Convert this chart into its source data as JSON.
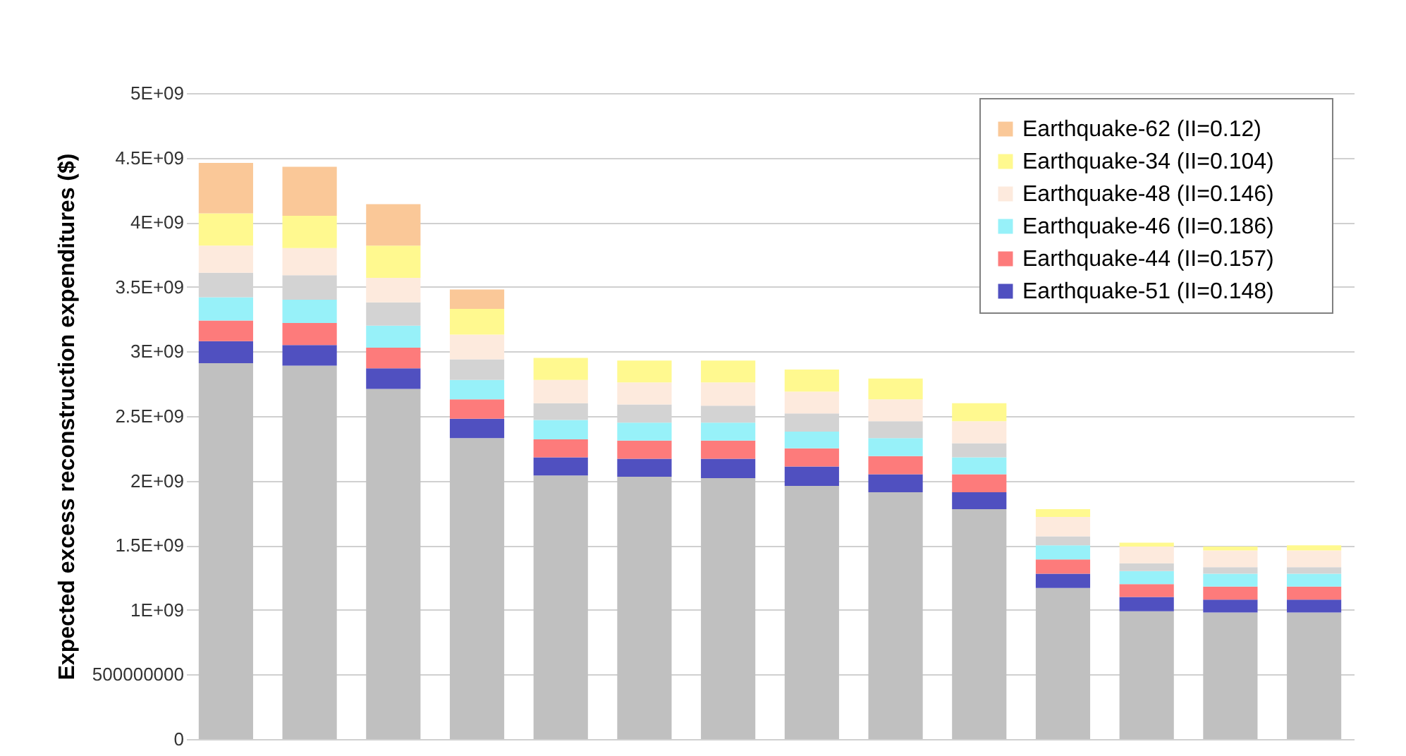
{
  "chart_data": {
    "type": "bar",
    "stacked": true,
    "ylabel": "Expected excess reconstruction expenditures ($)",
    "categories": [
      null,
      null,
      null,
      null,
      null,
      null,
      null,
      null,
      null,
      null,
      null,
      null,
      null,
      null
    ],
    "series": [
      {
        "color": "#c0c0c0",
        "values": [
          2910000000,
          2890000000,
          2710000000,
          2330000000,
          2040000000,
          2030000000,
          2020000000,
          1960000000,
          1910000000,
          1780000000,
          1170000000,
          990000000,
          980000000,
          980000000
        ]
      },
      {
        "name": "Earthquake-51 (II=0.148)",
        "color": "#5050c0",
        "values": [
          170000000,
          160000000,
          160000000,
          150000000,
          140000000,
          140000000,
          150000000,
          150000000,
          140000000,
          130000000,
          110000000,
          110000000,
          100000000,
          100000000
        ]
      },
      {
        "name": "Earthquake-44 (II=0.157)",
        "color": "#fd7b7b",
        "values": [
          160000000,
          170000000,
          160000000,
          150000000,
          140000000,
          140000000,
          140000000,
          140000000,
          140000000,
          140000000,
          110000000,
          100000000,
          100000000,
          100000000
        ]
      },
      {
        "name": "Earthquake-46 (II=0.186)",
        "color": "#97f1f9",
        "values": [
          180000000,
          180000000,
          170000000,
          150000000,
          150000000,
          140000000,
          140000000,
          130000000,
          140000000,
          130000000,
          110000000,
          100000000,
          100000000,
          100000000
        ]
      },
      {
        "color": "#d3d3d3",
        "values": [
          190000000,
          190000000,
          180000000,
          160000000,
          130000000,
          140000000,
          130000000,
          140000000,
          130000000,
          110000000,
          70000000,
          60000000,
          50000000,
          50000000
        ]
      },
      {
        "name": "Earthquake-48 (II=0.146)",
        "color": "#fdeadd",
        "values": [
          210000000,
          210000000,
          190000000,
          190000000,
          180000000,
          170000000,
          180000000,
          170000000,
          170000000,
          170000000,
          150000000,
          130000000,
          130000000,
          130000000
        ]
      },
      {
        "name": "Earthquake-34 (II=0.104)",
        "color": "#fff98f",
        "values": [
          250000000,
          250000000,
          250000000,
          200000000,
          170000000,
          170000000,
          170000000,
          170000000,
          160000000,
          140000000,
          60000000,
          30000000,
          30000000,
          40000000
        ]
      },
      {
        "name": "Earthquake-62 (II=0.12)",
        "color": "#fac898",
        "values": [
          390000000,
          380000000,
          320000000,
          150000000,
          0,
          0,
          0,
          0,
          0,
          0,
          0,
          0,
          0,
          0
        ]
      }
    ],
    "ylim": [
      0,
      5000000000
    ],
    "yticks": [
      0,
      500000000,
      {
        "value": 1000000000,
        "label": "1E+09"
      },
      {
        "value": 1500000000,
        "label": "1.5E+09"
      },
      {
        "value": 2000000000,
        "label": "2E+09"
      },
      {
        "value": 2500000000,
        "label": "2.5E+09"
      },
      {
        "value": 3000000000,
        "label": "3E+09"
      },
      {
        "value": 3500000000,
        "label": "3.5E+09"
      },
      {
        "value": 4000000000,
        "label": "4E+09"
      },
      {
        "value": 4500000000,
        "label": "4.5E+09"
      },
      {
        "value": 5000000000,
        "label": "5E+09"
      }
    ],
    "grid": "y",
    "legend": "top right",
    "tick_labels": "y"
  }
}
